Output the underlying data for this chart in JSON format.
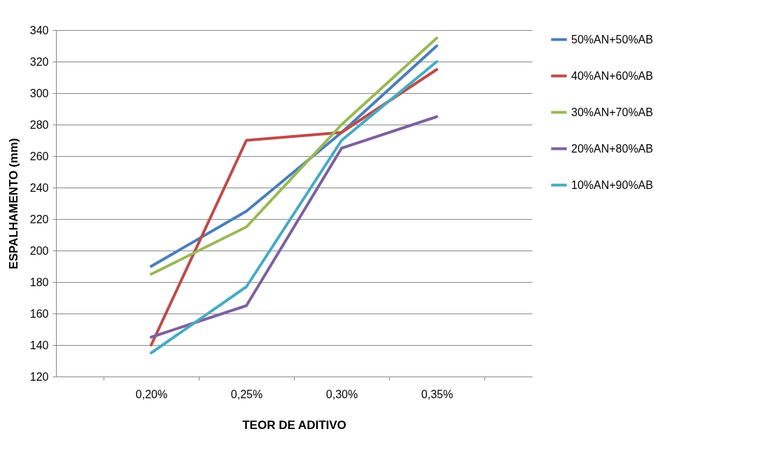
{
  "chart_data": {
    "type": "line",
    "xlabel": "TEOR DE ADITIVO",
    "ylabel": "ESPALHAMENTO (mm)",
    "categories": [
      "0,20%",
      "0,25%",
      "0,30%",
      "0,35%"
    ],
    "series": [
      {
        "name": "50%AN+50%AB",
        "color": "#4a7ebb",
        "values": [
          190,
          225,
          275,
          330
        ]
      },
      {
        "name": "40%AN+60%AB",
        "color": "#be4b48",
        "values": [
          140,
          270,
          275,
          315
        ]
      },
      {
        "name": "30%AN+70%AB",
        "color": "#98b954",
        "values": [
          185,
          215,
          280,
          335
        ]
      },
      {
        "name": "20%AN+80%AB",
        "color": "#7d60a0",
        "values": [
          145,
          165,
          265,
          285
        ]
      },
      {
        "name": "10%AN+90%AB",
        "color": "#46aac5",
        "values": [
          135,
          177,
          270,
          320
        ]
      }
    ],
    "ylim": [
      120,
      340
    ],
    "yticks": [
      120,
      140,
      160,
      180,
      200,
      220,
      240,
      260,
      280,
      300,
      320,
      340
    ],
    "grid": "y",
    "legend": "right",
    "marker": "none",
    "line_style": "solid"
  }
}
